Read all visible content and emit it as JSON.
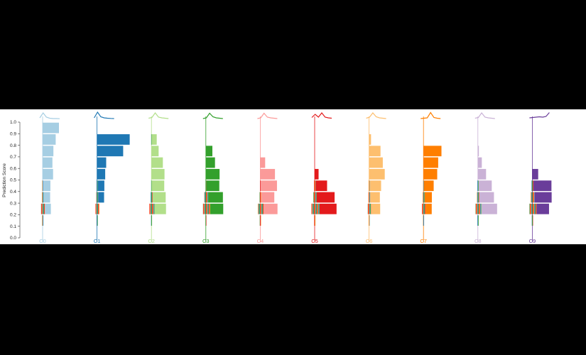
{
  "chart_data": {
    "type": "bar",
    "subtype": "per-class horizontal histograms of prediction scores with stacked stripes of other classes",
    "ylabel": "Prediction Score",
    "ylim": [
      0,
      1.0
    ],
    "yticks": [
      "0.0",
      "0.1",
      "0.2",
      "0.3",
      "0.4",
      "0.5",
      "0.6",
      "0.7",
      "0.8",
      "0.9",
      "1.0"
    ],
    "bins": [
      0.95,
      0.85,
      0.75,
      0.65,
      0.55,
      0.45,
      0.35,
      0.25,
      0.15,
      0.05
    ],
    "classes": [
      {
        "label": "C0",
        "color": "#a6cee3",
        "main": [
          0.5,
          0.4,
          0.33,
          0.3,
          0.32,
          0.22,
          0.2,
          0.18,
          0,
          0
        ],
        "stripes": [
          0,
          0,
          0,
          0,
          0,
          0.03,
          0.05,
          0.12,
          0.04,
          0
        ],
        "spark": [
          0.2,
          0.9,
          0.3,
          0.15,
          0.1,
          0.1,
          0.08
        ]
      },
      {
        "label": "C1",
        "color": "#1f78b4",
        "main": [
          0,
          1.0,
          0.8,
          0.28,
          0.25,
          0.2,
          0.18,
          0,
          0,
          0
        ],
        "stripes": [
          0,
          0,
          0,
          0,
          0,
          0.04,
          0.06,
          0.12,
          0.04,
          0
        ],
        "spark": [
          0.2,
          1.0,
          0.35,
          0.2,
          0.15,
          0.12,
          0.1
        ]
      },
      {
        "label": "C2",
        "color": "#b2df8a",
        "main": [
          0,
          0.15,
          0.22,
          0.35,
          0.4,
          0.38,
          0.4,
          0.35,
          0,
          0
        ],
        "stripes": [
          0,
          0.02,
          0,
          0,
          0,
          0.02,
          0.06,
          0.16,
          0.03,
          0
        ],
        "spark": [
          0.15,
          0.25,
          0.9,
          0.3,
          0.2,
          0.15,
          0.1
        ]
      },
      {
        "label": "C3",
        "color": "#33a02c",
        "main": [
          0,
          0,
          0.2,
          0.28,
          0.42,
          0.4,
          0.45,
          0.4,
          0,
          0
        ],
        "stripes": [
          0,
          0,
          0,
          0,
          0,
          0.02,
          0.12,
          0.22,
          0.03,
          0
        ],
        "spark": [
          0.1,
          0.2,
          0.85,
          0.35,
          0.2,
          0.15,
          0.1
        ]
      },
      {
        "label": "C4",
        "color": "#fb9a99",
        "main": [
          0,
          0,
          0,
          0.15,
          0.45,
          0.5,
          0.4,
          0.42,
          0,
          0
        ],
        "stripes": [
          0,
          0,
          0,
          0,
          0,
          0.02,
          0.05,
          0.18,
          0.04,
          0
        ],
        "spark": [
          0.1,
          0.2,
          0.85,
          0.3,
          0.2,
          0.15,
          0.1
        ]
      },
      {
        "label": "C5",
        "color": "#e31a1c",
        "main": [
          0,
          0,
          0,
          0,
          0.12,
          0.35,
          0.55,
          0.52,
          0,
          0
        ],
        "stripes": [
          0,
          0,
          0,
          0,
          0,
          0.05,
          0.1,
          0.25,
          0.04,
          0
        ],
        "spark": [
          0.25,
          0.7,
          0.3,
          0.9,
          0.3,
          0.2,
          0.15
        ]
      },
      {
        "label": "C6",
        "color": "#fdbf6f",
        "main": [
          0,
          0.06,
          0.35,
          0.42,
          0.48,
          0.35,
          0.3,
          0.28,
          0,
          0
        ],
        "stripes": [
          0,
          0,
          0,
          0,
          0,
          0.03,
          0.05,
          0.1,
          0.03,
          0
        ],
        "spark": [
          0.15,
          0.3,
          0.9,
          0.35,
          0.2,
          0.15,
          0.1
        ]
      },
      {
        "label": "C7",
        "color": "#ff7f00",
        "main": [
          0,
          0,
          0.55,
          0.45,
          0.42,
          0.3,
          0.22,
          0.18,
          0,
          0
        ],
        "stripes": [
          0,
          0,
          0,
          0,
          0,
          0.02,
          0.06,
          0.12,
          0.03,
          0
        ],
        "spark": [
          0.1,
          0.15,
          0.2,
          0.95,
          0.25,
          0.15,
          0.1
        ]
      },
      {
        "label": "C8",
        "color": "#cab2d6",
        "main": [
          0,
          0,
          0.03,
          0.12,
          0.25,
          0.4,
          0.45,
          0.48,
          0,
          0
        ],
        "stripes": [
          0,
          0,
          0,
          0,
          0,
          0.04,
          0.07,
          0.18,
          0.04,
          0
        ],
        "spark": [
          0.15,
          0.25,
          0.9,
          0.3,
          0.2,
          0.15,
          0.1
        ]
      },
      {
        "label": "C9",
        "color": "#6a3d9a",
        "main": [
          0,
          0,
          0,
          0,
          0.18,
          0.55,
          0.52,
          0.38,
          0,
          0
        ],
        "stripes": [
          0,
          0,
          0,
          0,
          0,
          0.06,
          0.12,
          0.22,
          0.04,
          0
        ],
        "spark": [
          0.2,
          0.25,
          0.3,
          0.35,
          0.3,
          0.4,
          0.95
        ]
      }
    ]
  }
}
